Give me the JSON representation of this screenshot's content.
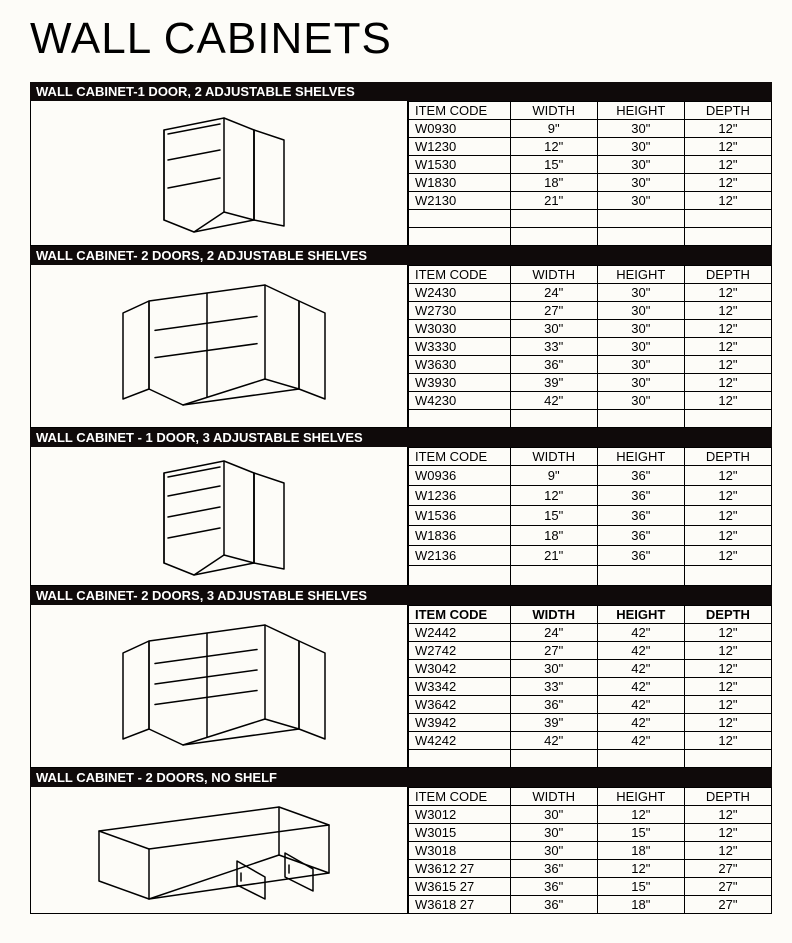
{
  "page_title": "WALL CABINETS",
  "column_headers": {
    "item_code": "ITEM CODE",
    "width": "WIDTH",
    "height": "HEIGHT",
    "depth": "DEPTH"
  },
  "colors": {
    "header_bg": "#0f0a0a",
    "header_text": "#ffffff",
    "page_bg": "#fdfcf8",
    "line": "#000000"
  },
  "sections": [
    {
      "title": "WALL CABINET-1 DOOR, 2 ADJUSTABLE SHELVES",
      "bold_header": false,
      "image_kind": "single_2shelf",
      "empty_rows_after": 2,
      "rows": [
        {
          "item_code": "W0930",
          "width": "9\"",
          "height": "30\"",
          "depth": "12\""
        },
        {
          "item_code": "W1230",
          "width": "12\"",
          "height": "30\"",
          "depth": "12\""
        },
        {
          "item_code": "W1530",
          "width": "15\"",
          "height": "30\"",
          "depth": "12\""
        },
        {
          "item_code": "W1830",
          "width": "18\"",
          "height": "30\"",
          "depth": "12\""
        },
        {
          "item_code": "W2130",
          "width": "21\"",
          "height": "30\"",
          "depth": "12\""
        }
      ]
    },
    {
      "title": "WALL CABINET- 2 DOORS, 2 ADJUSTABLE SHELVES",
      "bold_header": false,
      "image_kind": "double_2shelf",
      "empty_rows_after": 1,
      "rows": [
        {
          "item_code": "W2430",
          "width": "24\"",
          "height": "30\"",
          "depth": "12\""
        },
        {
          "item_code": "W2730",
          "width": "27\"",
          "height": "30\"",
          "depth": "12\""
        },
        {
          "item_code": "W3030",
          "width": "30\"",
          "height": "30\"",
          "depth": "12\""
        },
        {
          "item_code": "W3330",
          "width": "33\"",
          "height": "30\"",
          "depth": "12\""
        },
        {
          "item_code": "W3630",
          "width": "36\"",
          "height": "30\"",
          "depth": "12\""
        },
        {
          "item_code": "W3930",
          "width": "39\"",
          "height": "30\"",
          "depth": "12\""
        },
        {
          "item_code": "W4230",
          "width": "42\"",
          "height": "30\"",
          "depth": "12\""
        }
      ]
    },
    {
      "title": "WALL CABINET - 1 DOOR, 3 ADJUSTABLE SHELVES",
      "bold_header": false,
      "image_kind": "single_3shelf",
      "empty_rows_after": 1,
      "rows": [
        {
          "item_code": "W0936",
          "width": "9\"",
          "height": "36\"",
          "depth": "12\""
        },
        {
          "item_code": "W1236",
          "width": "12\"",
          "height": "36\"",
          "depth": "12\""
        },
        {
          "item_code": "W1536",
          "width": "15\"",
          "height": "36\"",
          "depth": "12\""
        },
        {
          "item_code": "W1836",
          "width": "18\"",
          "height": "36\"",
          "depth": "12\""
        },
        {
          "item_code": "W2136",
          "width": "21\"",
          "height": "36\"",
          "depth": "12\""
        }
      ]
    },
    {
      "title": "WALL CABINET- 2 DOORS, 3 ADJUSTABLE SHELVES",
      "bold_header": true,
      "image_kind": "double_3shelf",
      "empty_rows_after": 1,
      "rows": [
        {
          "item_code": "W2442",
          "width": "24\"",
          "height": "42\"",
          "depth": "12\""
        },
        {
          "item_code": "W2742",
          "width": "27\"",
          "height": "42\"",
          "depth": "12\""
        },
        {
          "item_code": "W3042",
          "width": "30\"",
          "height": "42\"",
          "depth": "12\""
        },
        {
          "item_code": "W3342",
          "width": "33\"",
          "height": "42\"",
          "depth": "12\""
        },
        {
          "item_code": "W3642",
          "width": "36\"",
          "height": "42\"",
          "depth": "12\""
        },
        {
          "item_code": "W3942",
          "width": "39\"",
          "height": "42\"",
          "depth": "12\""
        },
        {
          "item_code": "W4242",
          "width": "42\"",
          "height": "42\"",
          "depth": "12\""
        }
      ]
    },
    {
      "title": "WALL CABINET - 2 DOORS, NO SHELF",
      "bold_header": false,
      "image_kind": "double_noshelf_wide",
      "empty_rows_after": 0,
      "rows": [
        {
          "item_code": "W3012",
          "width": "30\"",
          "height": "12\"",
          "depth": "12\""
        },
        {
          "item_code": "W3015",
          "width": "30\"",
          "height": "15\"",
          "depth": "12\""
        },
        {
          "item_code": "W3018",
          "width": "30\"",
          "height": "18\"",
          "depth": "12\""
        },
        {
          "item_code": "W3612 27",
          "width": "36\"",
          "height": "12\"",
          "depth": "27\""
        },
        {
          "item_code": "W3615 27",
          "width": "36\"",
          "height": "15\"",
          "depth": "27\""
        },
        {
          "item_code": "W3618 27",
          "width": "36\"",
          "height": "18\"",
          "depth": "27\""
        }
      ]
    }
  ]
}
